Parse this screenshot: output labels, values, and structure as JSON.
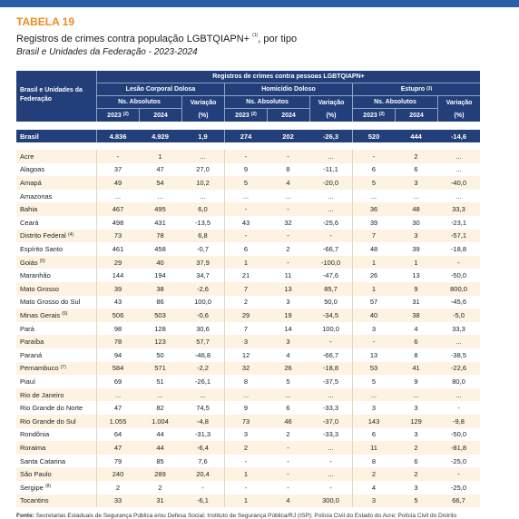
{
  "header": {
    "label": "TABELA 19",
    "title": "Registros de crimes contra população LGBTQIAPN+",
    "title_note": "(1)",
    "title_suffix": ", por tipo",
    "subtitle": "Brasil e Unidades da Federação - 2023-2024"
  },
  "table": {
    "stub_header": "Brasil e Unidades da Federação",
    "span_header": "Registros de crimes contra pessoas LGBTQIAPN+",
    "groups": [
      {
        "name": "Lesão Corporal Dolosa"
      },
      {
        "name": "Homicídio Doloso"
      },
      {
        "name": "Estupro",
        "note": "(3)"
      }
    ],
    "sub_absolute": "Ns. Absolutos",
    "sub_variation": "Variação",
    "year1": "2023",
    "year1_note": "(2)",
    "year2": "2024",
    "pct": "(%)",
    "rows": [
      {
        "name": "Brasil",
        "cells": [
          "4.836",
          "4.929",
          "1,9",
          "274",
          "202",
          "-26,3",
          "520",
          "444",
          "-14,6"
        ]
      },
      {
        "name": "Acre",
        "cells": [
          "-",
          "1",
          "...",
          "-",
          "-",
          "...",
          "-",
          "2",
          "..."
        ]
      },
      {
        "name": "Alagoas",
        "cells": [
          "37",
          "47",
          "27,0",
          "9",
          "8",
          "-11,1",
          "6",
          "6",
          "..."
        ]
      },
      {
        "name": "Amapá",
        "cells": [
          "49",
          "54",
          "10,2",
          "5",
          "4",
          "-20,0",
          "5",
          "3",
          "-40,0"
        ]
      },
      {
        "name": "Amazonas",
        "cells": [
          "...",
          "...",
          "...",
          "...",
          "...",
          "...",
          "...",
          "...",
          "..."
        ]
      },
      {
        "name": "Bahia",
        "cells": [
          "467",
          "495",
          "6,0",
          "-",
          "-",
          "...",
          "36",
          "48",
          "33,3"
        ]
      },
      {
        "name": "Ceará",
        "cells": [
          "498",
          "431",
          "-13,5",
          "43",
          "32",
          "-25,6",
          "39",
          "30",
          "-23,1"
        ]
      },
      {
        "name": "Distrito Federal",
        "note": "(4)",
        "cells": [
          "73",
          "78",
          "6,8",
          "-",
          "-",
          "-",
          "7",
          "3",
          "-57,1"
        ]
      },
      {
        "name": "Espírito Santo",
        "cells": [
          "461",
          "458",
          "-0,7",
          "6",
          "2",
          "-66,7",
          "48",
          "39",
          "-18,8"
        ]
      },
      {
        "name": "Goiás",
        "note": "(5)",
        "cells": [
          "29",
          "40",
          "37,9",
          "1",
          "-",
          "-100,0",
          "1",
          "1",
          "-"
        ]
      },
      {
        "name": "Maranhão",
        "cells": [
          "144",
          "194",
          "34,7",
          "21",
          "11",
          "-47,6",
          "26",
          "13",
          "-50,0"
        ]
      },
      {
        "name": "Mato Grosso",
        "cells": [
          "39",
          "38",
          "-2,6",
          "7",
          "13",
          "85,7",
          "1",
          "9",
          "800,0"
        ]
      },
      {
        "name": "Mato Grosso do Sul",
        "cells": [
          "43",
          "86",
          "100,0",
          "2",
          "3",
          "50,0",
          "57",
          "31",
          "-45,6"
        ]
      },
      {
        "name": "Minas Gerais",
        "note": "(6)",
        "cells": [
          "506",
          "503",
          "-0,6",
          "29",
          "19",
          "-34,5",
          "40",
          "38",
          "-5,0"
        ]
      },
      {
        "name": "Pará",
        "cells": [
          "98",
          "128",
          "30,6",
          "7",
          "14",
          "100,0",
          "3",
          "4",
          "33,3"
        ]
      },
      {
        "name": "Paraíba",
        "cells": [
          "78",
          "123",
          "57,7",
          "3",
          "3",
          "-",
          "-",
          "6",
          "..."
        ]
      },
      {
        "name": "Paraná",
        "cells": [
          "94",
          "50",
          "-46,8",
          "12",
          "4",
          "-66,7",
          "13",
          "8",
          "-38,5"
        ]
      },
      {
        "name": "Pernambuco",
        "note": "(7)",
        "cells": [
          "584",
          "571",
          "-2,2",
          "32",
          "26",
          "-18,8",
          "53",
          "41",
          "-22,6"
        ]
      },
      {
        "name": "Piauí",
        "cells": [
          "69",
          "51",
          "-26,1",
          "8",
          "5",
          "-37,5",
          "5",
          "9",
          "80,0"
        ]
      },
      {
        "name": "Rio de Janeiro",
        "cells": [
          "...",
          "...",
          "...",
          "...",
          "...",
          "...",
          "...",
          "...",
          "..."
        ]
      },
      {
        "name": "Rio Grande do Norte",
        "cells": [
          "47",
          "82",
          "74,5",
          "9",
          "6",
          "-33,3",
          "3",
          "3",
          "-"
        ]
      },
      {
        "name": "Rio Grande do Sul",
        "cells": [
          "1.055",
          "1.004",
          "-4,8",
          "73",
          "46",
          "-37,0",
          "143",
          "129",
          "-9,8"
        ]
      },
      {
        "name": "Rondônia",
        "cells": [
          "64",
          "44",
          "-31,3",
          "3",
          "2",
          "-33,3",
          "6",
          "3",
          "-50,0"
        ]
      },
      {
        "name": "Roraima",
        "cells": [
          "47",
          "44",
          "-6,4",
          "2",
          "-",
          "...",
          "11",
          "2",
          "-81,8"
        ]
      },
      {
        "name": "Santa Catarina",
        "cells": [
          "79",
          "85",
          "7,6",
          "-",
          "-",
          "-",
          "8",
          "6",
          "-25,0"
        ]
      },
      {
        "name": "São Paulo",
        "cells": [
          "240",
          "289",
          "20,4",
          "1",
          "-",
          "...",
          "2",
          "2",
          "-"
        ]
      },
      {
        "name": "Sergipe",
        "note": "(8)",
        "cells": [
          "2",
          "2",
          "-",
          "-",
          "-",
          "-",
          "4",
          "3",
          "-25,0"
        ]
      },
      {
        "name": "Tocantins",
        "cells": [
          "33",
          "31",
          "-6,1",
          "1",
          "4",
          "300,0",
          "3",
          "5",
          "66,7"
        ]
      }
    ]
  },
  "footer": {
    "label": "Fonte:",
    "text": "Secretarias Estaduais de Segurança Pública e/ou Defesa Social; Instituto de Segurança Pública/RJ (ISP); Polícia Civil do Estado do Acre; Polícia Civil do Distrito"
  }
}
